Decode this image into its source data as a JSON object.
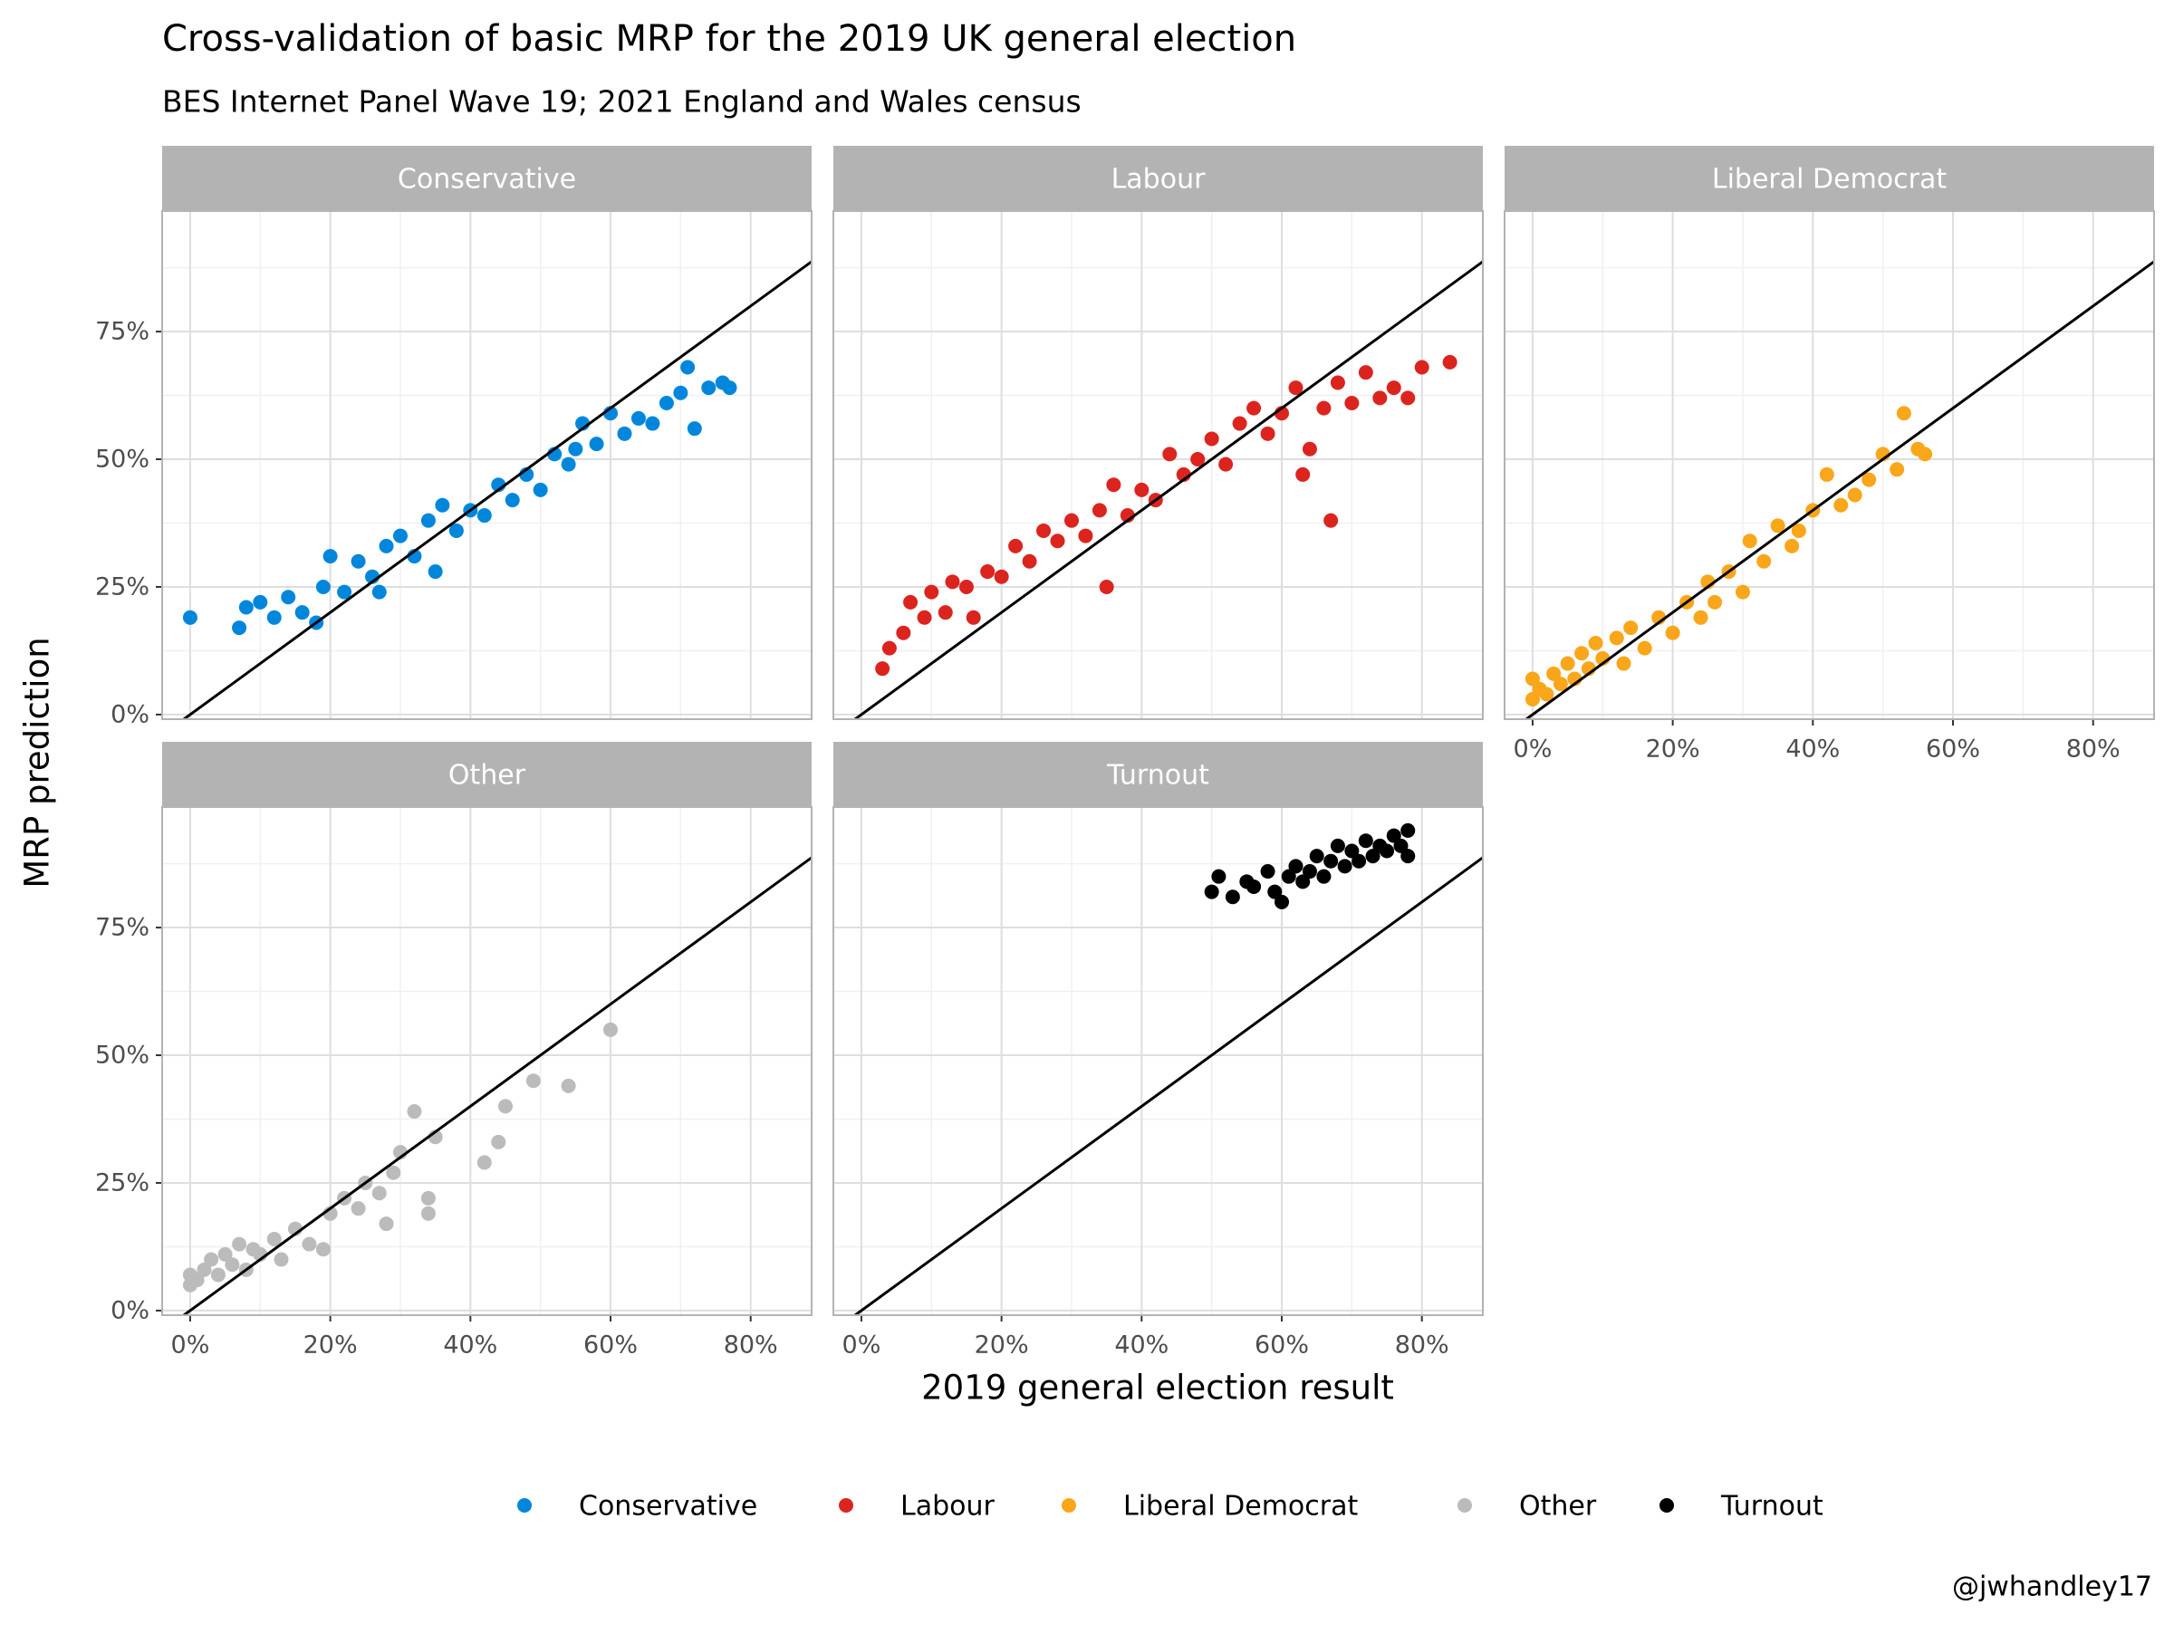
{
  "title": "Cross-validation of basic MRP for the 2019 UK general election",
  "subtitle": "BES Internet Panel Wave 19; 2021 England and Wales census",
  "x_label": "2019 general election result",
  "y_label": "MRP prediction",
  "caption": "@jwhandley17",
  "chart_data": [
    {
      "type": "scatter",
      "grid": true,
      "identity_line": true,
      "xlim": [
        -4,
        88.7
      ],
      "ylim": [
        -0.9,
        98.6
      ],
      "xticks": [
        {
          "value": 0,
          "label": "0%"
        },
        {
          "value": 20,
          "label": "20%"
        },
        {
          "value": 40,
          "label": "40%"
        },
        {
          "value": 60,
          "label": "60%"
        },
        {
          "value": 80,
          "label": "80%"
        }
      ],
      "yticks": [
        {
          "value": 0,
          "label": "0%"
        },
        {
          "value": 25,
          "label": "25%"
        },
        {
          "value": 50,
          "label": "50%"
        },
        {
          "value": 75,
          "label": "75%"
        }
      ],
      "series": [
        {
          "name": "Conservative",
          "color": "#0087DC",
          "x": [
            0,
            7,
            8,
            10,
            12,
            14,
            16,
            18,
            19,
            20,
            22,
            24,
            26,
            27,
            28,
            30,
            32,
            34,
            35,
            36,
            38,
            40,
            42,
            44,
            46,
            48,
            50,
            52,
            54,
            55,
            56,
            58,
            60,
            62,
            64,
            66,
            68,
            70,
            71,
            72,
            74,
            76,
            77
          ],
          "values": [
            19,
            17,
            21,
            22,
            19,
            23,
            20,
            18,
            25,
            31,
            24,
            30,
            27,
            24,
            33,
            35,
            31,
            38,
            28,
            41,
            36,
            40,
            39,
            45,
            42,
            47,
            44,
            51,
            49,
            52,
            57,
            53,
            59,
            55,
            58,
            57,
            61,
            63,
            68,
            56,
            64,
            65,
            64
          ]
        }
      ]
    },
    {
      "type": "scatter",
      "grid": true,
      "identity_line": true,
      "xlim": [
        -4,
        88.7
      ],
      "ylim": [
        -0.9,
        98.6
      ],
      "xticks": [
        {
          "value": 0,
          "label": "0%"
        },
        {
          "value": 20,
          "label": "20%"
        },
        {
          "value": 40,
          "label": "40%"
        },
        {
          "value": 60,
          "label": "60%"
        },
        {
          "value": 80,
          "label": "80%"
        }
      ],
      "yticks": [
        {
          "value": 0,
          "label": "0%"
        },
        {
          "value": 25,
          "label": "25%"
        },
        {
          "value": 50,
          "label": "50%"
        },
        {
          "value": 75,
          "label": "75%"
        }
      ],
      "series": [
        {
          "name": "Labour",
          "color": "#DC241F",
          "x": [
            3,
            4,
            6,
            7,
            9,
            10,
            12,
            13,
            15,
            16,
            18,
            20,
            22,
            24,
            26,
            28,
            30,
            32,
            34,
            35,
            36,
            38,
            40,
            42,
            44,
            46,
            48,
            50,
            52,
            54,
            56,
            58,
            60,
            62,
            63,
            64,
            66,
            67,
            68,
            70,
            72,
            74,
            76,
            78,
            80,
            84
          ],
          "values": [
            9,
            13,
            16,
            22,
            19,
            24,
            20,
            26,
            25,
            19,
            28,
            27,
            33,
            30,
            36,
            34,
            38,
            35,
            40,
            25,
            45,
            39,
            44,
            42,
            51,
            47,
            50,
            54,
            49,
            57,
            60,
            55,
            59,
            64,
            47,
            52,
            60,
            38,
            65,
            61,
            67,
            62,
            64,
            62,
            68,
            69
          ]
        }
      ]
    },
    {
      "type": "scatter",
      "grid": true,
      "identity_line": true,
      "xlim": [
        -4,
        88.7
      ],
      "ylim": [
        -0.9,
        98.6
      ],
      "xticks": [
        {
          "value": 0,
          "label": "0%"
        },
        {
          "value": 20,
          "label": "20%"
        },
        {
          "value": 40,
          "label": "40%"
        },
        {
          "value": 60,
          "label": "60%"
        },
        {
          "value": 80,
          "label": "80%"
        }
      ],
      "yticks": [
        {
          "value": 0,
          "label": "0%"
        },
        {
          "value": 25,
          "label": "25%"
        },
        {
          "value": 50,
          "label": "50%"
        },
        {
          "value": 75,
          "label": "75%"
        }
      ],
      "series": [
        {
          "name": "Liberal Democrat",
          "color": "#FAA61A",
          "x": [
            0,
            0,
            1,
            2,
            3,
            4,
            5,
            6,
            7,
            8,
            9,
            10,
            12,
            13,
            14,
            16,
            18,
            20,
            22,
            24,
            25,
            26,
            28,
            30,
            31,
            33,
            35,
            37,
            38,
            40,
            42,
            44,
            46,
            48,
            50,
            52,
            53,
            55,
            56
          ],
          "values": [
            3,
            7,
            5,
            4,
            8,
            6,
            10,
            7,
            12,
            9,
            14,
            11,
            15,
            10,
            17,
            13,
            19,
            16,
            22,
            19,
            26,
            22,
            28,
            24,
            34,
            30,
            37,
            33,
            36,
            40,
            47,
            41,
            43,
            46,
            51,
            48,
            59,
            52,
            51
          ]
        }
      ]
    },
    {
      "type": "scatter",
      "grid": true,
      "identity_line": true,
      "xlim": [
        -4,
        88.7
      ],
      "ylim": [
        -0.9,
        98.6
      ],
      "xticks": [
        {
          "value": 0,
          "label": "0%"
        },
        {
          "value": 20,
          "label": "20%"
        },
        {
          "value": 40,
          "label": "40%"
        },
        {
          "value": 60,
          "label": "60%"
        },
        {
          "value": 80,
          "label": "80%"
        }
      ],
      "yticks": [
        {
          "value": 0,
          "label": "0%"
        },
        {
          "value": 25,
          "label": "25%"
        },
        {
          "value": 50,
          "label": "50%"
        },
        {
          "value": 75,
          "label": "75%"
        }
      ],
      "series": [
        {
          "name": "Other",
          "color": "#BBBBBB",
          "x": [
            0,
            0,
            1,
            2,
            3,
            4,
            5,
            6,
            7,
            8,
            9,
            10,
            12,
            13,
            15,
            17,
            19,
            20,
            22,
            24,
            25,
            27,
            28,
            29,
            30,
            32,
            34,
            34,
            35,
            42,
            44,
            45,
            49,
            54,
            60
          ],
          "values": [
            5,
            7,
            6,
            8,
            10,
            7,
            11,
            9,
            13,
            8,
            12,
            11,
            14,
            10,
            16,
            13,
            12,
            19,
            22,
            20,
            25,
            23,
            17,
            27,
            31,
            39,
            19,
            22,
            34,
            29,
            33,
            40,
            45,
            44,
            55
          ]
        }
      ]
    },
    {
      "type": "scatter",
      "grid": true,
      "identity_line": true,
      "xlim": [
        -4,
        88.7
      ],
      "ylim": [
        -0.9,
        98.6
      ],
      "xticks": [
        {
          "value": 0,
          "label": "0%"
        },
        {
          "value": 20,
          "label": "20%"
        },
        {
          "value": 40,
          "label": "40%"
        },
        {
          "value": 60,
          "label": "60%"
        },
        {
          "value": 80,
          "label": "80%"
        }
      ],
      "yticks": [
        {
          "value": 0,
          "label": "0%"
        },
        {
          "value": 25,
          "label": "25%"
        },
        {
          "value": 50,
          "label": "50%"
        },
        {
          "value": 75,
          "label": "75%"
        }
      ],
      "series": [
        {
          "name": "Turnout",
          "color": "#000000",
          "x": [
            50,
            51,
            53,
            55,
            56,
            58,
            59,
            60,
            61,
            62,
            63,
            64,
            65,
            66,
            67,
            68,
            69,
            70,
            71,
            72,
            73,
            74,
            75,
            76,
            77,
            78,
            78
          ],
          "values": [
            82,
            85,
            81,
            84,
            83,
            86,
            82,
            80,
            85,
            87,
            84,
            86,
            89,
            85,
            88,
            91,
            87,
            90,
            88,
            92,
            89,
            91,
            90,
            93,
            91,
            94,
            89
          ]
        }
      ]
    }
  ]
}
